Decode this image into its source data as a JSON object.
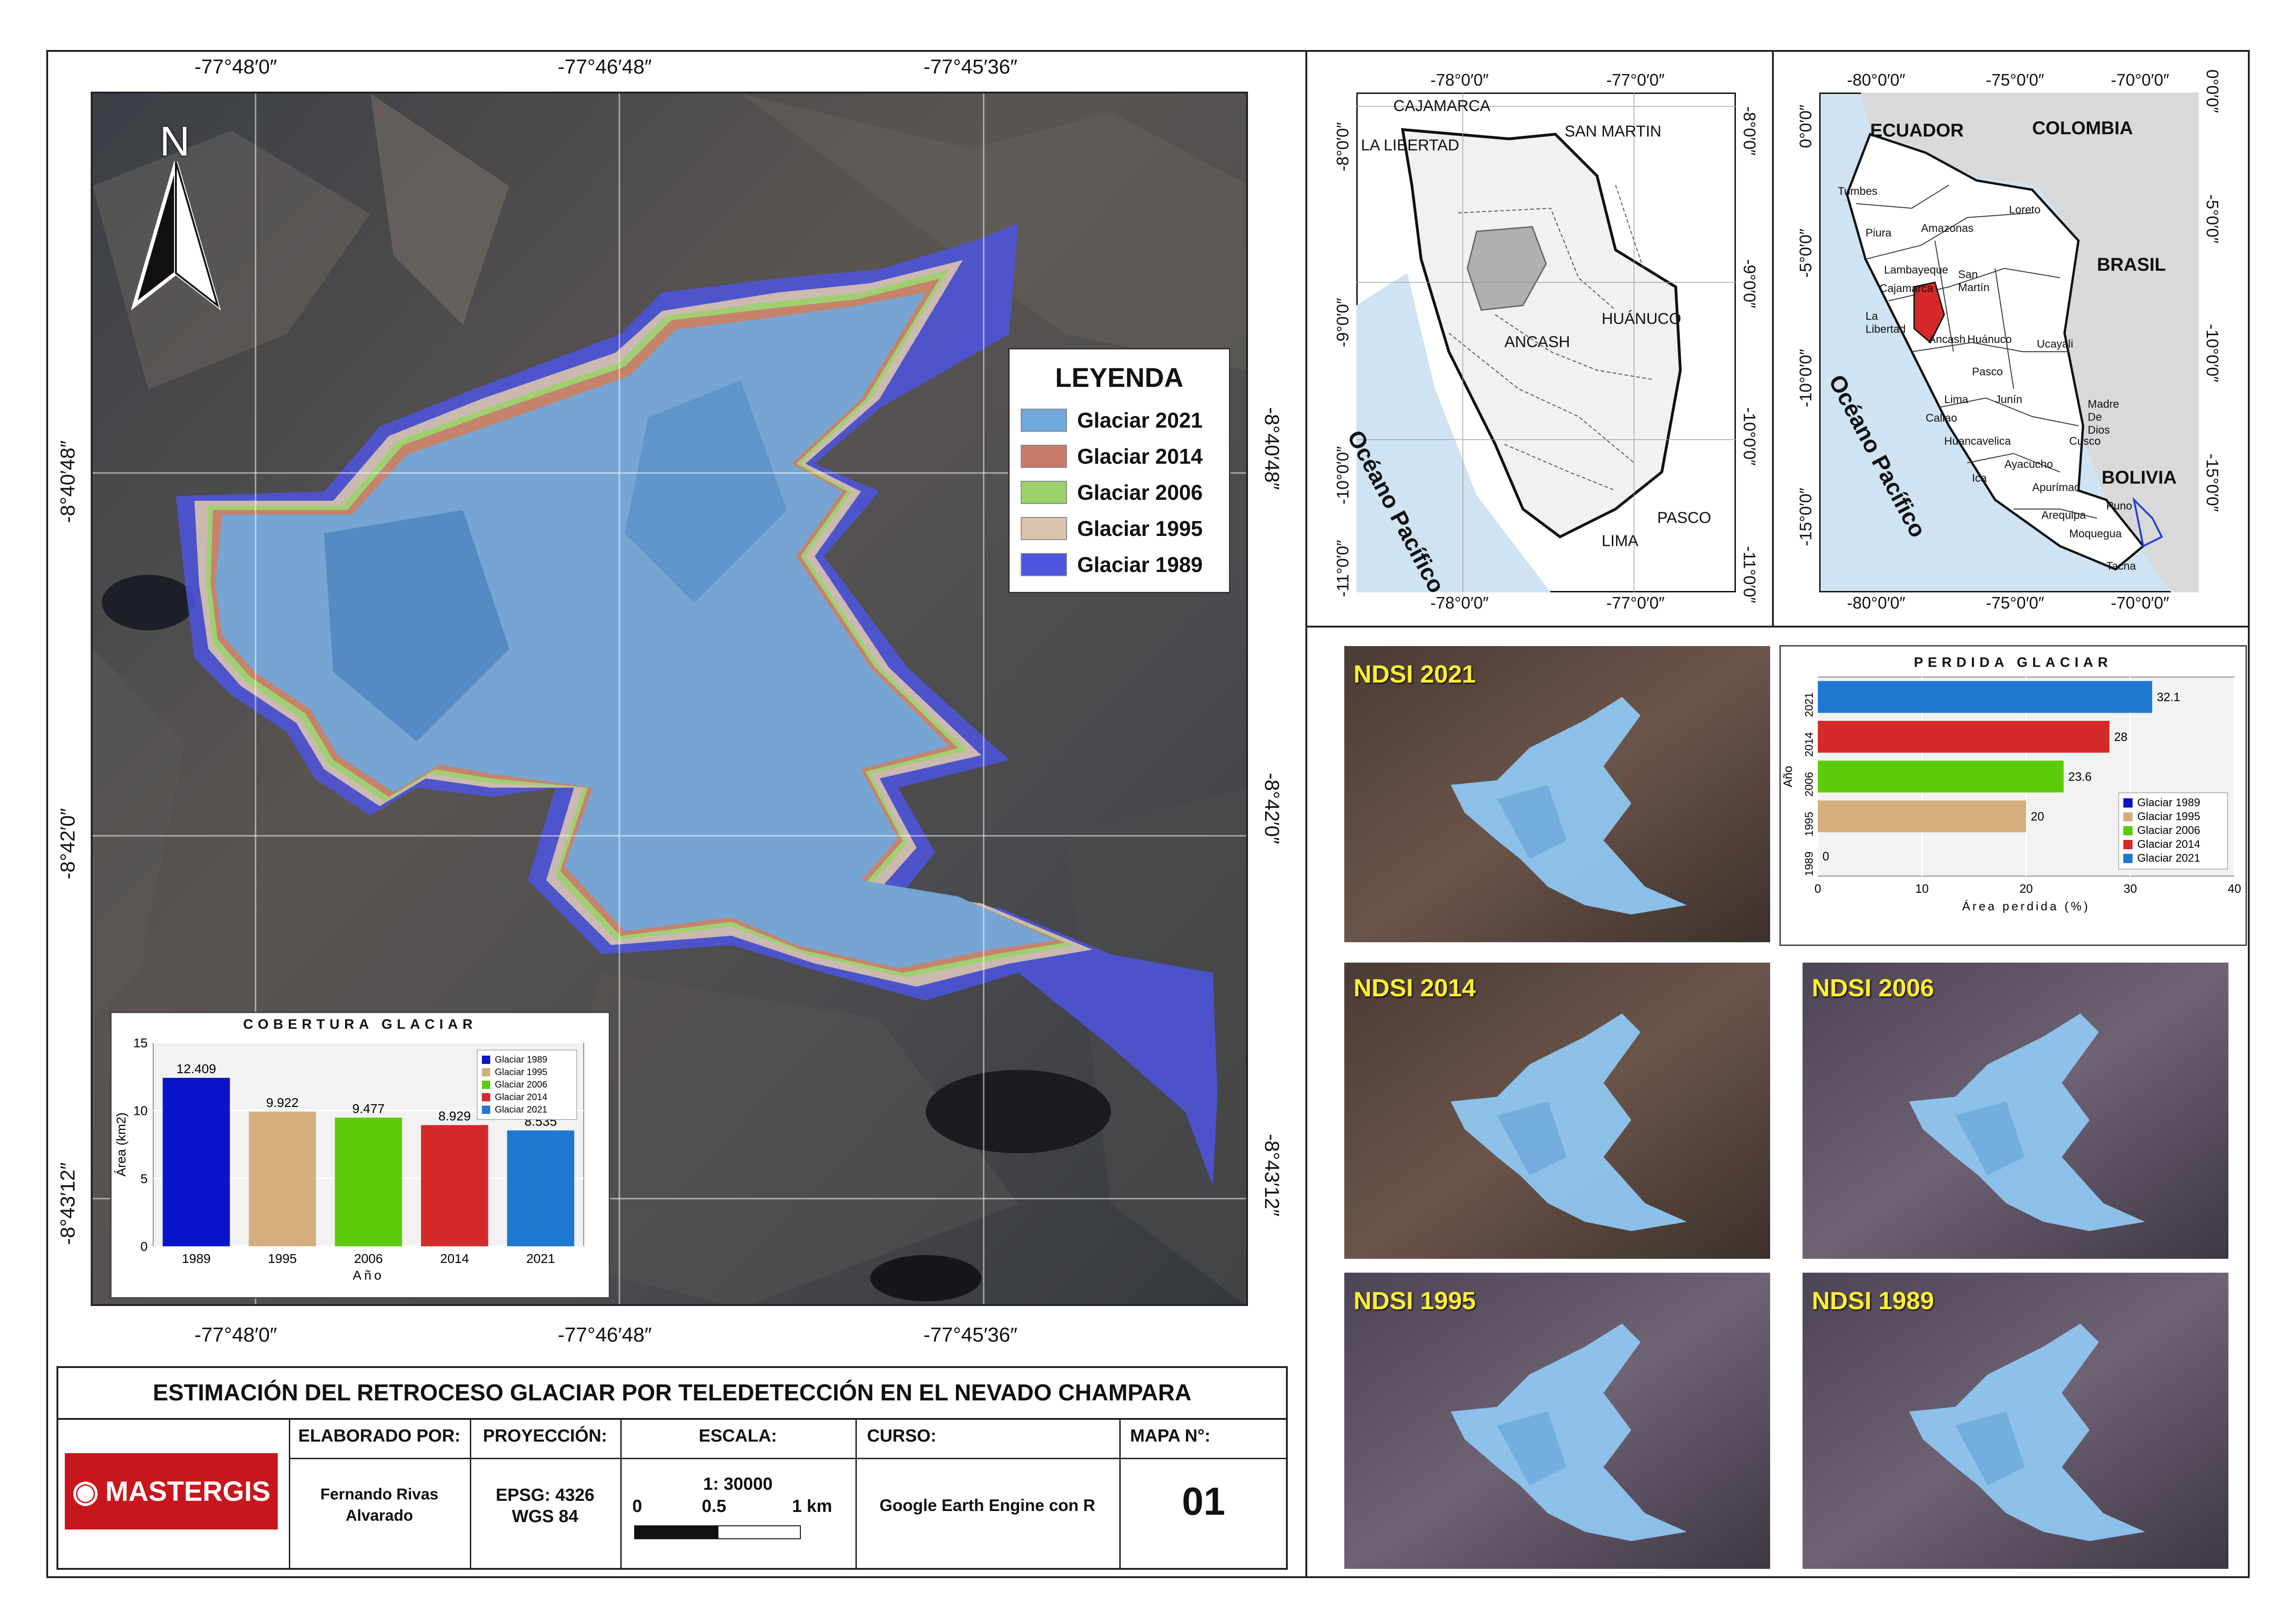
{
  "main_map": {
    "north_label": "N",
    "top_coords": [
      "-77°48′0″",
      "-77°46′48″",
      "-77°45′36″"
    ],
    "bottom_coords": [
      "-77°48′0″",
      "-77°46′48″",
      "-77°45′36″"
    ],
    "left_coords": [
      "-8°40′48″",
      "-8°42′0″",
      "-8°43′12″"
    ],
    "right_coords": [
      "-8°40′48″",
      "-8°42′0″",
      "-8°43′12″"
    ]
  },
  "legend": {
    "title": "LEYENDA",
    "items": [
      {
        "label": "Glaciar 2021",
        "color": "#6fa8dc"
      },
      {
        "label": "Glaciar 2014",
        "color": "#c97a6a"
      },
      {
        "label": "Glaciar 2006",
        "color": "#9bd26b"
      },
      {
        "label": "Glaciar 1995",
        "color": "#d9c4ae"
      },
      {
        "label": "Glaciar 1989",
        "color": "#4e55e0"
      }
    ]
  },
  "chart_data": [
    {
      "type": "bar",
      "title": "COBERTURA GLACIAR",
      "xlabel": "Año",
      "ylabel": "Área (km2)",
      "categories": [
        "1989",
        "1995",
        "2006",
        "2014",
        "2021"
      ],
      "values": [
        12.409,
        9.922,
        9.477,
        8.929,
        8.535
      ],
      "value_labels": [
        "12.409",
        "9.922",
        "9.477",
        "8.929",
        "8.535"
      ],
      "colors": [
        "#0a14c8",
        "#d4ae7e",
        "#5ccc0a",
        "#d42a2a",
        "#1e78d2"
      ],
      "ylim": [
        0,
        15
      ],
      "yticks": [
        "0",
        "5",
        "10",
        "15"
      ],
      "legend": [
        "Glaciar 1989",
        "Glaciar 1995",
        "Glaciar 2006",
        "Glaciar 2014",
        "Glaciar 2021"
      ],
      "legend_position": "top-right"
    },
    {
      "type": "bar",
      "orientation": "horizontal",
      "title": "PERDIDA GLACIAR",
      "xlabel": "Área perdida (%)",
      "ylabel": "Año",
      "categories": [
        "2021",
        "2014",
        "2006",
        "1995",
        "1989"
      ],
      "values": [
        32.1,
        28,
        23.6,
        20,
        0
      ],
      "value_labels": [
        "32.1",
        "28",
        "23.6",
        "20",
        "0"
      ],
      "colors": [
        "#1e78d2",
        "#d42a2a",
        "#5ccc0a",
        "#d4ae7e",
        "#0a14c8"
      ],
      "xlim": [
        0,
        40
      ],
      "xticks": [
        "0",
        "10",
        "20",
        "30",
        "40"
      ],
      "legend": [
        "Glaciar 1989",
        "Glaciar 1995",
        "Glaciar 2006",
        "Glaciar 2014",
        "Glaciar 2021"
      ],
      "legend_position": "bottom-right"
    }
  ],
  "ancash_map": {
    "top_coords": [
      "-78°0′0″",
      "-77°0′0″"
    ],
    "bottom_coords": [
      "-78°0′0″",
      "-77°0′0″"
    ],
    "left_coords": [
      "-8°0′0″",
      "-9°0′0″",
      "-10°0′0″",
      "-11°0′0″"
    ],
    "right_coords": [
      "-8°0′0″",
      "-9°0′0″",
      "-10°0′0″",
      "-11°0′0″"
    ],
    "labels": [
      "CAJAMARCA",
      "LA LIBERTAD",
      "SAN MARTIN",
      "HUÁNUCO",
      "ANCASH",
      "PASCO",
      "LIMA"
    ],
    "ocean": "Océano Pacífico"
  },
  "peru_map": {
    "top_coords": [
      "-80°0′0″",
      "-75°0′0″",
      "-70°0′0″"
    ],
    "bottom_coords": [
      "-80°0′0″",
      "-75°0′0″",
      "-70°0′0″"
    ],
    "left_coords": [
      "0°0′0″",
      "-5°0′0″",
      "-10°0′0″",
      "-15°0′0″"
    ],
    "right_coords": [
      "0°0′0″",
      "-5°0′0″",
      "-10°0′0″",
      "-15°0′0″"
    ],
    "countries": [
      "ECUADOR",
      "COLOMBIA",
      "BRASIL",
      "BOLIVIA"
    ],
    "regions": [
      "Tumbes",
      "Piura",
      "Amazonas",
      "Loreto",
      "Lambayeque",
      "San Martín",
      "La Libertad",
      "Cajamarca",
      "Ancash",
      "Huánuco",
      "Ucayali",
      "Pasco",
      "Lima",
      "Junín",
      "Callao",
      "Madre De Dios",
      "Huancavelica",
      "Cusco",
      "Ica",
      "Ayacucho",
      "Apurímac",
      "Arequipa",
      "Puno",
      "Moquegua",
      "Tacna"
    ],
    "ocean": "Océano Pacífico"
  },
  "ndsi_panels": [
    "NDSI 2021",
    "NDSI 2014",
    "NDSI 2006",
    "NDSI 1995",
    "NDSI 1989"
  ],
  "title_block": {
    "title": "ESTIMACIÓN DEL RETROCESO GLACIAR POR TELEDETECCIÓN EN EL NEVADO CHAMPARA",
    "logo": "MASTERGIS",
    "headers": [
      "ELABORADO POR:",
      "PROYECCIÓN:",
      "ESCALA:",
      "CURSO:",
      "MAPA N°:"
    ],
    "author_line1": "Fernando Rivas",
    "author_line2": "Alvarado",
    "proj_line1": "EPSG: 4326",
    "proj_line2": "WGS 84",
    "scale": "1: 30000",
    "scale_ticks": [
      "0",
      "0.5",
      "1 km"
    ],
    "course": "Google Earth Engine con R",
    "map_number": "01"
  }
}
